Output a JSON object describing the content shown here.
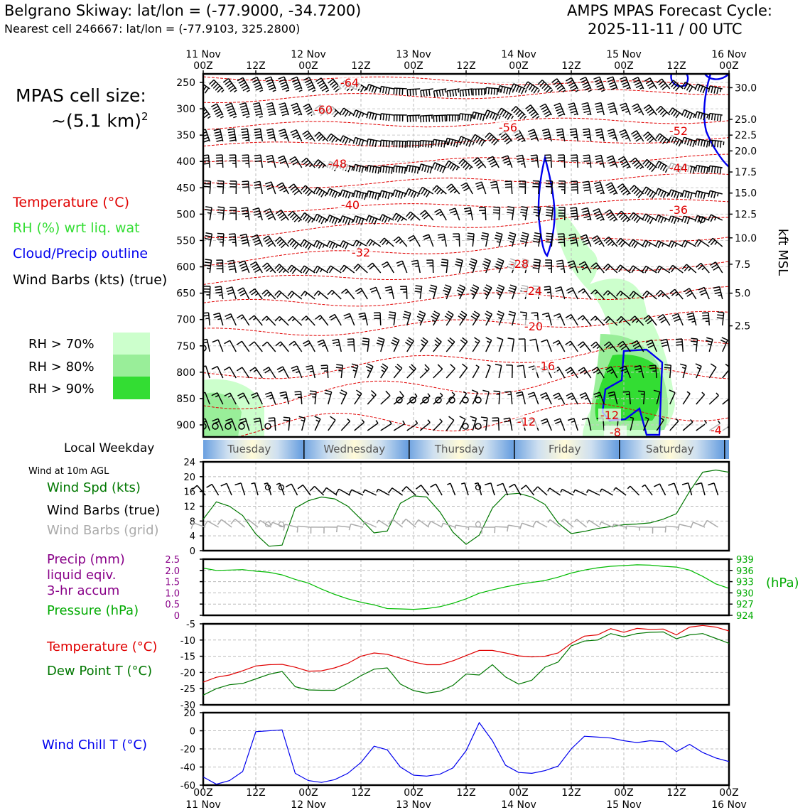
{
  "header": {
    "location": "Belgrano Skiway: lat/lon = (-77.9000, -34.7200)",
    "nearest": "Nearest cell 246667: lat/lon = (-77.9103, 325.2800)",
    "model_line": "AMPS MPAS Forecast Cycle:",
    "cycle_line": "2025-11-11 / 00 UTC"
  },
  "left_panel": {
    "cell_size_label": "MPAS cell size:",
    "cell_size_value": "~(5.1 km)",
    "cell_size_exp": "2",
    "legend_temp": "Temperature (°C)",
    "legend_rh": "RH (%) wrt liq. wat",
    "legend_cloud": "Cloud/Precip outline",
    "legend_barbs": "Wind Barbs (kts) (true)",
    "rh70": "RH > 70%",
    "rh80": "RH > 80%",
    "rh90": "RH > 90%",
    "local_weekday": "Local Weekday",
    "wind10m": "Wind at 10m AGL",
    "wind_spd": "Wind Spd (kts)",
    "wind_barbs_true": "Wind Barbs (true)",
    "wind_barbs_grid": "Wind Barbs (grid)",
    "precip_1": "Precip (mm)",
    "precip_2": "liquid eqiv.",
    "precip_3": "3-hr accum",
    "pressure": "Pressure (hPa)",
    "temperature": "Temperature (°C)",
    "dewpoint": "Dew Point T (°C)",
    "windchill": "Wind Chill T (°C)"
  },
  "colors": {
    "temp": "#e00000",
    "rh_label": "#33dd33",
    "cloud": "#0000ee",
    "wind_spd": "#007700",
    "grid_barbs": "#aaaaaa",
    "precip": "#880088",
    "pressure": "#00aa00",
    "rh70": "#ccffcc",
    "rh80": "#99ee99",
    "rh90": "#33dd33"
  },
  "chart_data": [
    {
      "type": "line",
      "name": "cross-section",
      "x_top_labels": [
        {
          "top": "11 Nov",
          "bottom": "00Z"
        },
        {
          "top": "",
          "bottom": "12Z"
        },
        {
          "top": "12 Nov",
          "bottom": "00Z"
        },
        {
          "top": "",
          "bottom": "12Z"
        },
        {
          "top": "13 Nov",
          "bottom": "00Z"
        },
        {
          "top": "",
          "bottom": "12Z"
        },
        {
          "top": "14 Nov",
          "bottom": "00Z"
        },
        {
          "top": "",
          "bottom": "12Z"
        },
        {
          "top": "15 Nov",
          "bottom": "00Z"
        },
        {
          "top": "",
          "bottom": "12Z"
        },
        {
          "top": "16 Nov",
          "bottom": "00Z"
        }
      ],
      "pressure_ticks": [
        250,
        300,
        350,
        400,
        450,
        500,
        550,
        600,
        650,
        700,
        750,
        800,
        850,
        900
      ],
      "kft_ticks": [
        {
          "value": "30.0",
          "p": 260
        },
        {
          "value": "25.0",
          "p": 320
        },
        {
          "value": "22.5",
          "p": 350
        },
        {
          "value": "20.0",
          "p": 380
        },
        {
          "value": "17.5",
          "p": 420
        },
        {
          "value": "15.0",
          "p": 460
        },
        {
          "value": "12.5",
          "p": 500
        },
        {
          "value": "10.0",
          "p": 545
        },
        {
          "value": "7.5",
          "p": 595
        },
        {
          "value": "5.0",
          "p": 650
        },
        {
          "value": "2.5",
          "p": 712
        }
      ],
      "ylabel_right": "kft MSL",
      "isotherm_labels": [
        "-64",
        "-60",
        "-56",
        "-52",
        "-48",
        "-44",
        "-40",
        "-36",
        "-32",
        "-28",
        "-24",
        "-20",
        "-16",
        "-12",
        "-12",
        "-8",
        "-4"
      ]
    },
    {
      "type": "line",
      "name": "weekday",
      "weekdays": [
        "Tuesday",
        "Wednesday",
        "Thursday",
        "Friday",
        "Saturday"
      ]
    },
    {
      "type": "line",
      "name": "wind_speed",
      "ylim": [
        0,
        24
      ],
      "yticks": [
        "0",
        "4",
        "8",
        "12",
        "16",
        "20",
        "24"
      ],
      "x_hours": [
        0,
        3,
        6,
        9,
        12,
        15,
        18,
        21,
        24,
        27,
        30,
        33,
        36,
        39,
        42,
        45,
        48,
        51,
        54,
        57,
        60,
        63,
        66,
        69,
        72,
        75,
        78,
        81,
        84,
        87,
        90,
        93,
        96,
        99,
        102,
        105,
        108,
        111,
        114,
        117,
        120
      ],
      "values": [
        8.5,
        13.2,
        12.0,
        9.5,
        4.5,
        1.2,
        1.5,
        11.5,
        13.5,
        14.5,
        14.0,
        12.0,
        8.5,
        4.8,
        5.3,
        12.8,
        14.8,
        14.5,
        10.5,
        5.0,
        1.7,
        4.2,
        11.5,
        15.2,
        15.5,
        14.5,
        12.5,
        7.5,
        4.6,
        5.2,
        6.0,
        6.5,
        7.0,
        7.2,
        7.5,
        8.5,
        10.0,
        16.0,
        21.2,
        21.8,
        21.2
      ]
    },
    {
      "type": "line",
      "name": "pressure",
      "left_ylim": [
        0,
        2.5
      ],
      "left_ticks": [
        "0",
        "0.5",
        "1.0",
        "1.5",
        "2.0",
        "2.5"
      ],
      "right_ticks": [
        "924",
        "927",
        "930",
        "933",
        "936",
        "939"
      ],
      "right_unit": "(hPa)",
      "ylim": [
        924,
        939
      ],
      "values": [
        936.6,
        936.0,
        936.1,
        936.2,
        935.8,
        935.5,
        934.8,
        933.6,
        932.6,
        931.0,
        929.6,
        928.4,
        927.5,
        926.8,
        925.8,
        925.7,
        925.6,
        925.8,
        926.3,
        927.2,
        928.4,
        929.9,
        930.8,
        931.6,
        932.3,
        932.8,
        933.3,
        934.2,
        935.3,
        936.1,
        936.7,
        937.1,
        937.3,
        937.5,
        937.4,
        937.1,
        936.9,
        936.1,
        934.4,
        932.4,
        931.2
      ]
    },
    {
      "type": "line",
      "name": "temperature",
      "ylim": [
        -30,
        -5
      ],
      "yticks": [
        "-30",
        "-25",
        "-20",
        "-15",
        "-10",
        "-5"
      ],
      "series": [
        {
          "name": "Temperature (°C)",
          "values": [
            -23.0,
            -21.5,
            -20.8,
            -19.5,
            -18.0,
            -17.6,
            -17.5,
            -18.4,
            -19.6,
            -19.5,
            -18.6,
            -17.2,
            -15.0,
            -14.0,
            -14.4,
            -15.6,
            -16.8,
            -17.6,
            -17.6,
            -16.4,
            -14.8,
            -13.2,
            -13.2,
            -14.0,
            -14.9,
            -15.2,
            -15.0,
            -14.0,
            -11.0,
            -8.8,
            -8.4,
            -6.5,
            -7.6,
            -6.4,
            -6.7,
            -6.6,
            -8.4,
            -6.0,
            -5.5,
            -6.0,
            -7.2
          ]
        },
        {
          "name": "Dew Point T (°C)",
          "values": [
            -27.0,
            -25.0,
            -23.8,
            -23.4,
            -22.0,
            -20.6,
            -19.7,
            -24.4,
            -25.4,
            -25.5,
            -25.5,
            -23.4,
            -21.0,
            -19.0,
            -18.6,
            -23.6,
            -25.6,
            -26.4,
            -25.8,
            -24.0,
            -20.5,
            -20.8,
            -17.6,
            -21.4,
            -23.6,
            -22.4,
            -18.4,
            -16.8,
            -11.8,
            -10.3,
            -10.0,
            -8.0,
            -9.0,
            -8.0,
            -7.6,
            -7.5,
            -9.6,
            -8.4,
            -8.0,
            -9.5,
            -11.0
          ]
        }
      ]
    },
    {
      "type": "line",
      "name": "wind_chill",
      "ylim": [
        -60,
        20
      ],
      "yticks": [
        "-60",
        "-40",
        "-20",
        "0",
        "20"
      ],
      "x_bottom_labels": [
        {
          "top": "00Z",
          "bottom": "11 Nov"
        },
        {
          "top": "12Z",
          "bottom": ""
        },
        {
          "top": "00Z",
          "bottom": "12 Nov"
        },
        {
          "top": "12Z",
          "bottom": ""
        },
        {
          "top": "00Z",
          "bottom": "13 Nov"
        },
        {
          "top": "12Z",
          "bottom": ""
        },
        {
          "top": "00Z",
          "bottom": "14 Nov"
        },
        {
          "top": "12Z",
          "bottom": ""
        },
        {
          "top": "00Z",
          "bottom": "15 Nov"
        },
        {
          "top": "12Z",
          "bottom": ""
        },
        {
          "top": "00Z",
          "bottom": "16 Nov"
        }
      ],
      "values": [
        -51,
        -59,
        -55,
        -45,
        -1,
        0,
        1,
        -47,
        -55,
        -57,
        -54,
        -47,
        -35,
        -17,
        -21,
        -40,
        -49,
        -50,
        -48,
        -41,
        -22,
        9,
        -11,
        -38,
        -46,
        -47,
        -44,
        -39,
        -20,
        -6,
        -7,
        -8,
        -11,
        -13,
        -11,
        -12,
        -23,
        -15,
        -24,
        -30,
        -34
      ]
    }
  ]
}
